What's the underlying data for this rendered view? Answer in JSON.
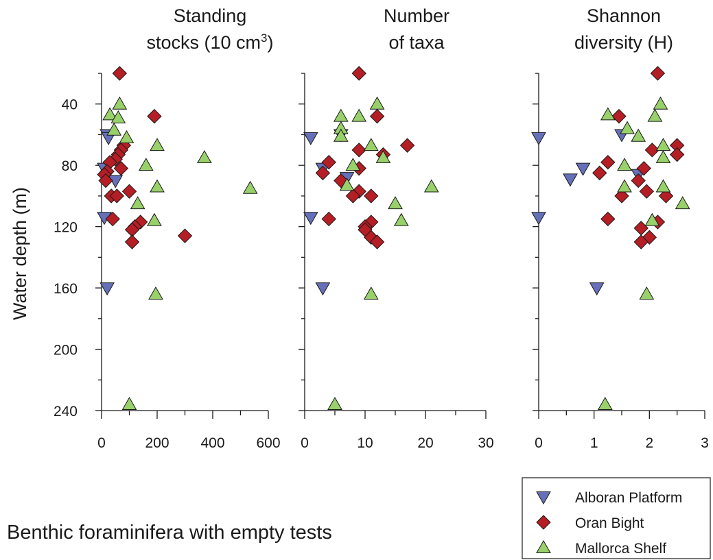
{
  "caption": "Benthic foraminifera with empty tests",
  "ylabel": "Water depth (m)",
  "y_axis": {
    "ylim": [
      240,
      20
    ],
    "ticks": [
      40,
      80,
      120,
      160,
      200,
      240
    ],
    "minor_step": 20,
    "inverted": true
  },
  "legend": {
    "placement": "bottom-right",
    "entries": [
      {
        "key": "alboran",
        "label": "Alboran Platform",
        "marker": "triangle-down",
        "color": "#6670b8"
      },
      {
        "key": "oran",
        "label": "Oran Bight",
        "marker": "diamond",
        "color": "#b41e24"
      },
      {
        "key": "mallorca",
        "label": "Mallorca Shelf",
        "marker": "triangle-up",
        "color": "#98d06a"
      }
    ]
  },
  "chart_data": [
    {
      "type": "scatter",
      "title_line1": "Standing",
      "title_line2": "stocks (10 cm",
      "title_sup": "3",
      "title_close": ")",
      "xlim": [
        0,
        600
      ],
      "xticks": [
        0,
        200,
        400,
        600
      ],
      "minor_step": 100,
      "series": [
        {
          "name": "Alboran Platform",
          "key": "alboran",
          "points": [
            [
              20,
              60
            ],
            [
              25,
              62
            ],
            [
              50,
              90
            ],
            [
              10,
              82
            ],
            [
              10,
              114
            ],
            [
              20,
              160
            ]
          ]
        },
        {
          "name": "Oran Bight",
          "key": "oran",
          "points": [
            [
              65,
              20
            ],
            [
              190,
              48
            ],
            [
              80,
              67
            ],
            [
              70,
              70
            ],
            [
              60,
              73
            ],
            [
              50,
              76
            ],
            [
              30,
              78
            ],
            [
              70,
              82
            ],
            [
              20,
              84
            ],
            [
              10,
              86
            ],
            [
              15,
              90
            ],
            [
              100,
              97
            ],
            [
              35,
              100
            ],
            [
              55,
              100
            ],
            [
              40,
              115
            ],
            [
              140,
              117
            ],
            [
              120,
              120
            ],
            [
              110,
              122
            ],
            [
              110,
              130
            ],
            [
              300,
              126
            ]
          ]
        },
        {
          "name": "Mallorca Shelf",
          "key": "mallorca",
          "points": [
            [
              65,
              40
            ],
            [
              30,
              47
            ],
            [
              60,
              49
            ],
            [
              45,
              57
            ],
            [
              90,
              62
            ],
            [
              200,
              67
            ],
            [
              160,
              80
            ],
            [
              370,
              75
            ],
            [
              200,
              94
            ],
            [
              535,
              95
            ],
            [
              130,
              105
            ],
            [
              190,
              116
            ],
            [
              195,
              164
            ],
            [
              100,
              236
            ]
          ]
        }
      ]
    },
    {
      "type": "scatter",
      "title_line1": "Number",
      "title_line2": "of taxa",
      "xlim": [
        0,
        30
      ],
      "xticks": [
        0,
        10,
        20,
        30
      ],
      "minor_step": 5,
      "series": [
        {
          "name": "Alboran Platform",
          "key": "alboran",
          "points": [
            [
              1,
              62
            ],
            [
              6,
              60
            ],
            [
              7,
              88
            ],
            [
              3,
              82
            ],
            [
              1,
              114
            ],
            [
              3,
              160
            ]
          ]
        },
        {
          "name": "Oran Bight",
          "key": "oran",
          "points": [
            [
              9,
              20
            ],
            [
              12,
              48
            ],
            [
              17,
              67
            ],
            [
              9,
              70
            ],
            [
              13,
              73
            ],
            [
              4,
              78
            ],
            [
              9,
              82
            ],
            [
              3,
              85
            ],
            [
              6,
              90
            ],
            [
              9,
              97
            ],
            [
              8,
              100
            ],
            [
              11,
              100
            ],
            [
              4,
              115
            ],
            [
              11,
              117
            ],
            [
              10,
              120
            ],
            [
              10,
              122
            ],
            [
              11,
              127
            ],
            [
              12,
              130
            ]
          ]
        },
        {
          "name": "Mallorca Shelf",
          "key": "mallorca",
          "points": [
            [
              12,
              40
            ],
            [
              6,
              48
            ],
            [
              9,
              48
            ],
            [
              6,
              56
            ],
            [
              6,
              61
            ],
            [
              11,
              67
            ],
            [
              8,
              80
            ],
            [
              13,
              75
            ],
            [
              7,
              93
            ],
            [
              21,
              94
            ],
            [
              15,
              105
            ],
            [
              16,
              116
            ],
            [
              11,
              164
            ],
            [
              5,
              236
            ]
          ]
        }
      ]
    },
    {
      "type": "scatter",
      "title_line1": "Shannon",
      "title_line2": "diversity (H)",
      "xlim": [
        0,
        3
      ],
      "xticks": [
        0,
        1,
        2,
        3
      ],
      "minor_step": 0.5,
      "series": [
        {
          "name": "Alboran Platform",
          "key": "alboran",
          "points": [
            [
              0,
              62
            ],
            [
              1.5,
              60
            ],
            [
              0.8,
              82
            ],
            [
              0.57,
              89
            ],
            [
              1.8,
              86
            ],
            [
              0,
              114
            ],
            [
              1.05,
              160
            ]
          ]
        },
        {
          "name": "Oran Bight",
          "key": "oran",
          "points": [
            [
              2.15,
              20
            ],
            [
              1.45,
              48
            ],
            [
              2.05,
              70
            ],
            [
              2.5,
              67
            ],
            [
              2.5,
              73
            ],
            [
              1.25,
              78
            ],
            [
              1.9,
              82
            ],
            [
              1.1,
              85
            ],
            [
              1.8,
              90
            ],
            [
              1.95,
              97
            ],
            [
              1.5,
              100
            ],
            [
              2.3,
              100
            ],
            [
              1.25,
              115
            ],
            [
              2.15,
              117
            ],
            [
              1.85,
              121
            ],
            [
              2,
              127
            ],
            [
              1.85,
              130
            ]
          ]
        },
        {
          "name": "Mallorca Shelf",
          "key": "mallorca",
          "points": [
            [
              2.2,
              40
            ],
            [
              1.25,
              47
            ],
            [
              2.1,
              48
            ],
            [
              1.6,
              56
            ],
            [
              1.8,
              61
            ],
            [
              2.25,
              67
            ],
            [
              2.25,
              75
            ],
            [
              1.55,
              80
            ],
            [
              2.25,
              94
            ],
            [
              1.55,
              94
            ],
            [
              2.6,
              105
            ],
            [
              2.05,
              116
            ],
            [
              1.95,
              164
            ],
            [
              1.2,
              236
            ]
          ]
        }
      ]
    }
  ]
}
